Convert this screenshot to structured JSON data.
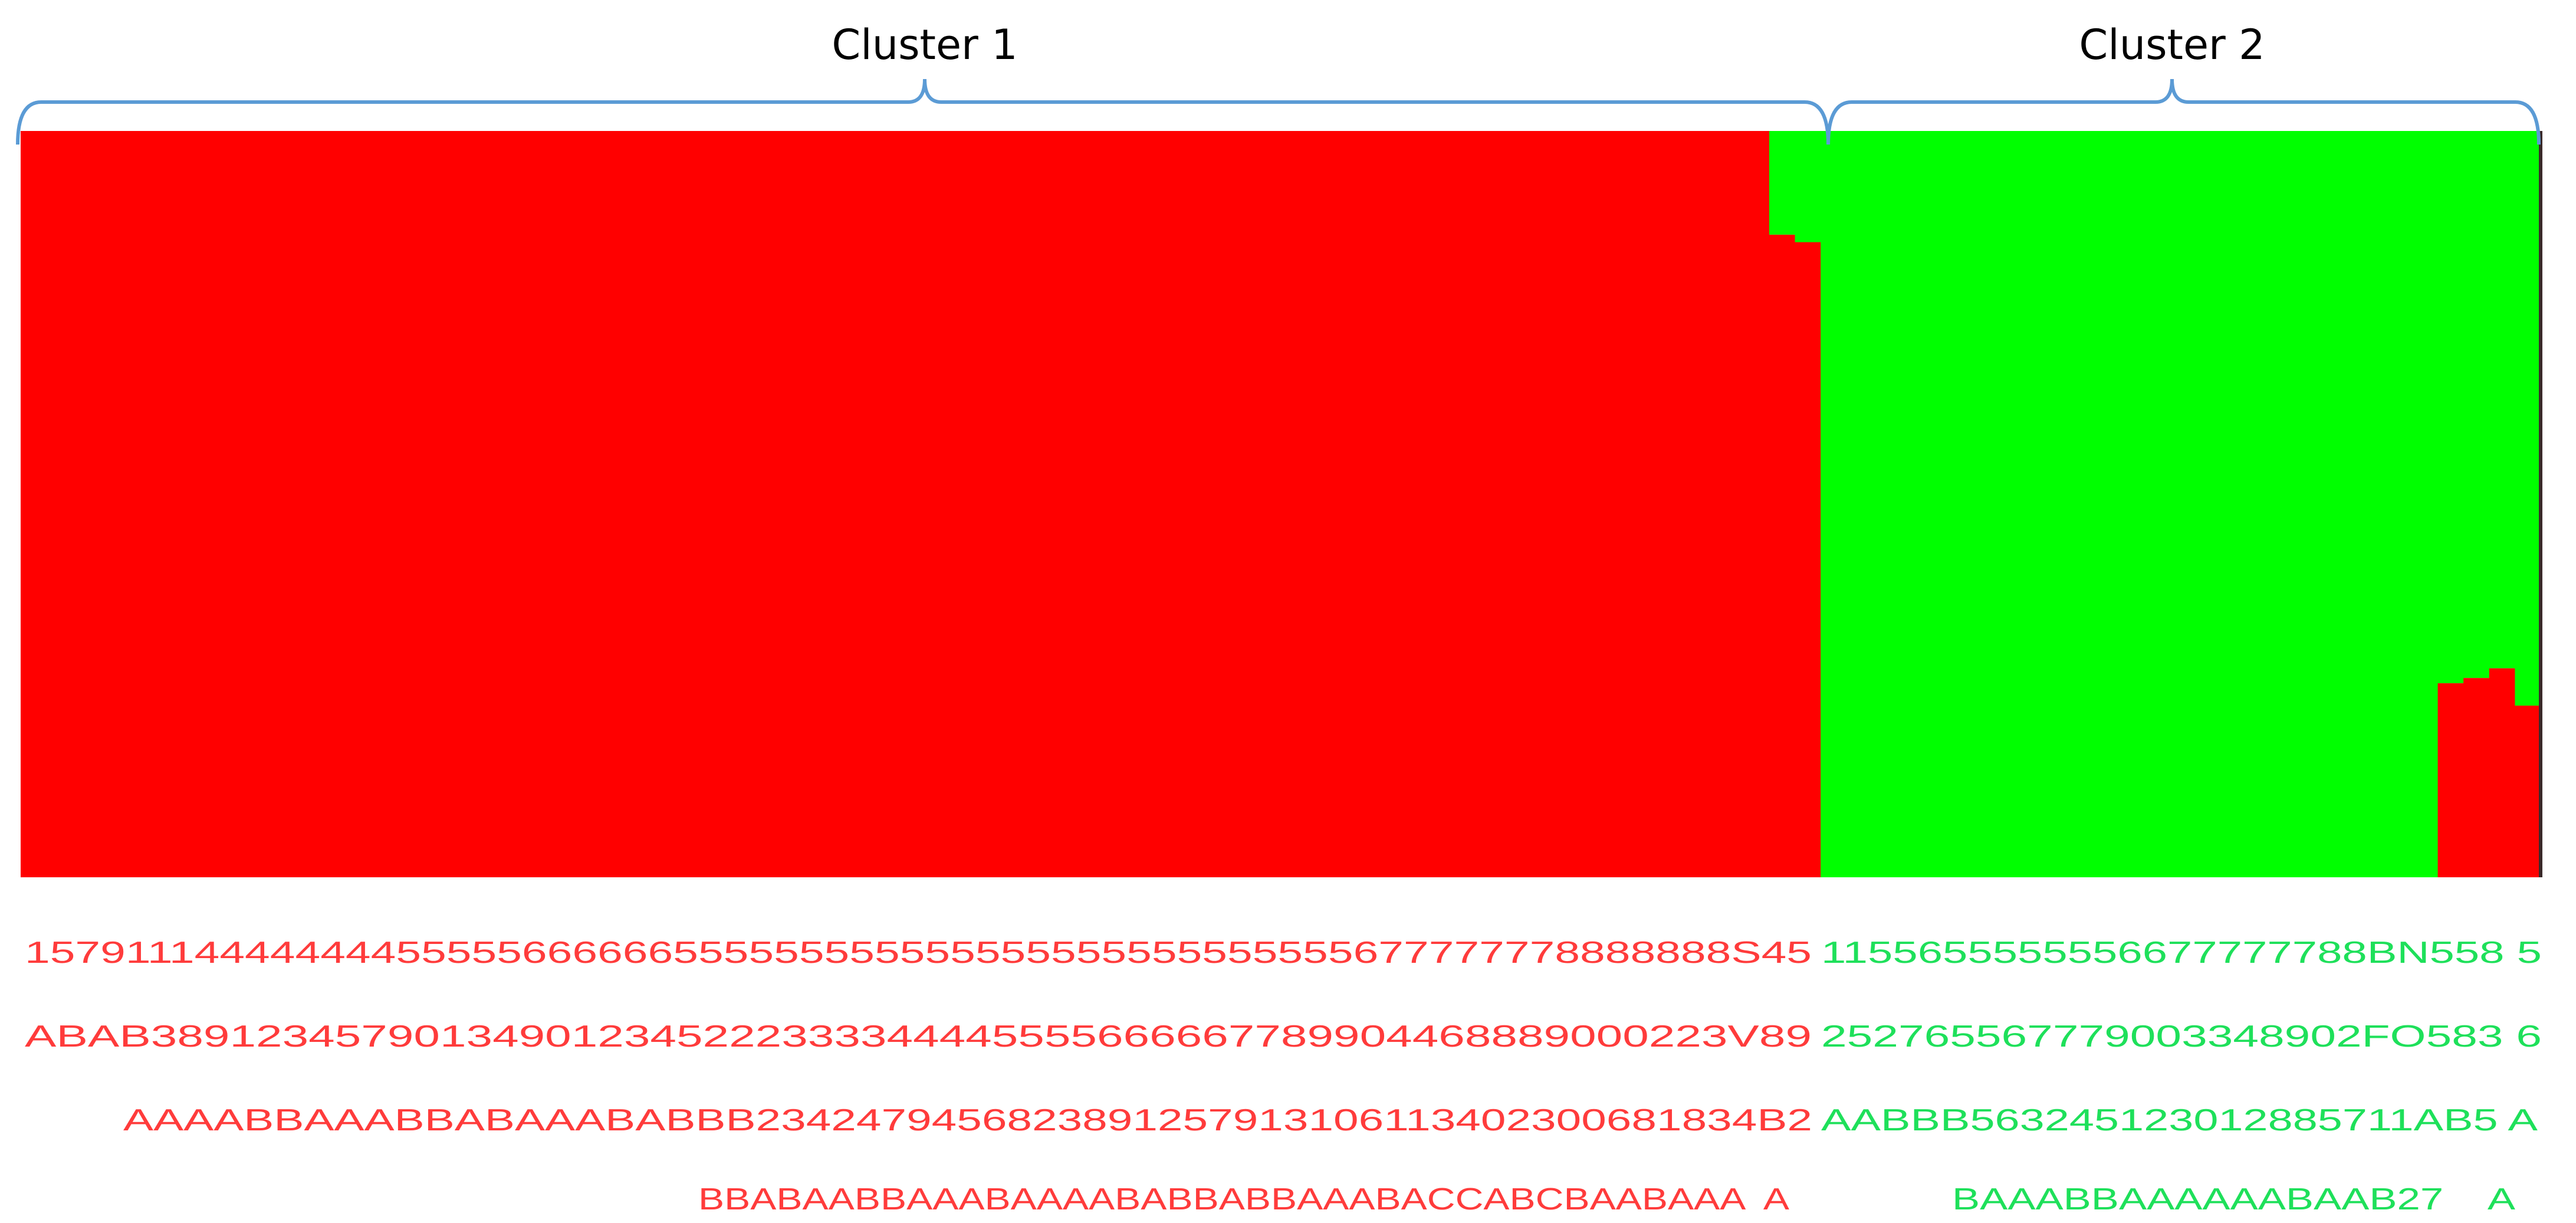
{
  "chart_data": {
    "type": "bar",
    "stacked": true,
    "ylim": [
      0,
      1
    ],
    "grid": false,
    "colors": {
      "red": "#ff0000",
      "green": "#00ff00",
      "bracket": "#5b9bd5",
      "label_red": "#ff3b3b",
      "label_green": "#1ee05a"
    },
    "clusters": [
      {
        "label": "Cluster 1",
        "runs": [
          {
            "n": 68,
            "red": 1.0
          },
          {
            "n": 1,
            "red": 0.861
          },
          {
            "n": 1,
            "red": 0.851
          }
        ],
        "sample_label_rows": [
          "15791114444444455555666666555555555555555555555555555677777778888888S45",
          "ABAB389123457901349012345222333344445555666667789904468889000223V89",
          "AAAABBAAABBABAAABABBB2342479456823891257913106113402300681834B2",
          "BBABAABBAAABAAAABABBABBAAABACCABCBAABAAA  A"
        ]
      },
      {
        "label": "Cluster 2",
        "runs": [
          {
            "n": 24,
            "red": 0.0
          },
          {
            "n": 1,
            "red": 0.26
          },
          {
            "n": 1,
            "red": 0.267
          },
          {
            "n": 1,
            "red": 0.28
          },
          {
            "n": 1,
            "red": 0.23
          }
        ],
        "sample_label_rows": [
          "1155655555556677777788BN558 5",
          "252765567779003348902FO583 6",
          "AABBB563245123012885711AB5 A",
          "BAAABBAAAAAABAAB27    A"
        ]
      }
    ]
  }
}
